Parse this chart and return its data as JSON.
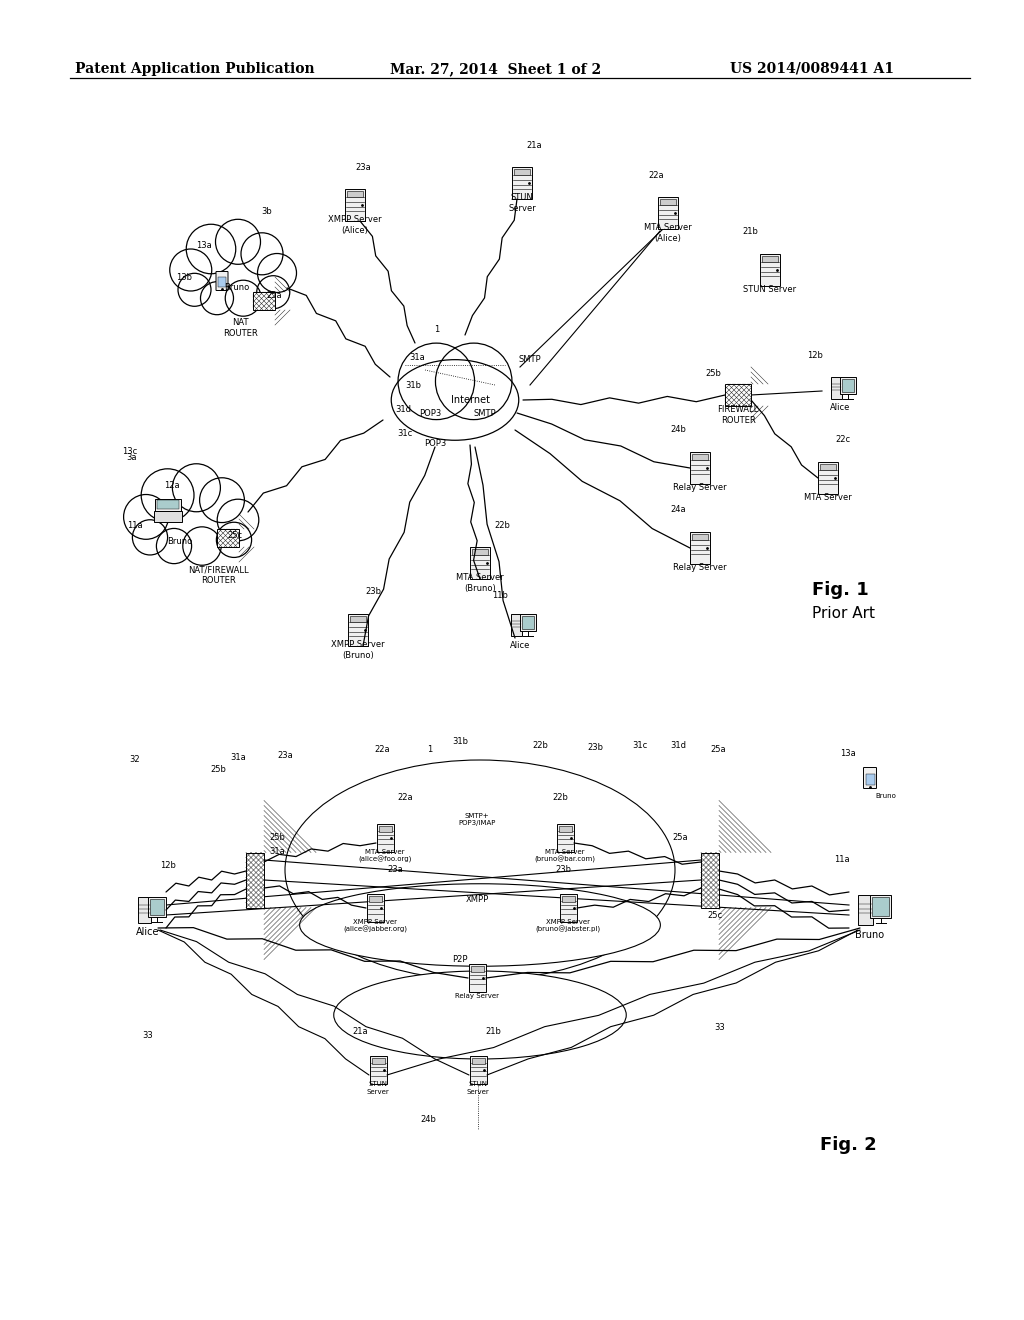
{
  "title_left": "Patent Application Publication",
  "title_mid": "Mar. 27, 2014  Sheet 1 of 2",
  "title_right": "US 2014/0089441 A1",
  "background_color": "#ffffff",
  "fig1_label": "Fig. 1",
  "fig1_sublabel": "Prior Art",
  "fig2_label": "Fig. 2",
  "header_fontsize": 10,
  "body_fontsize": 7,
  "small_fontsize": 6
}
